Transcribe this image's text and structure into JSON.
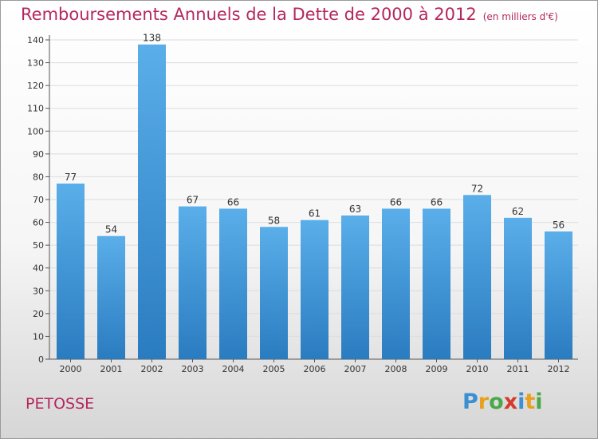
{
  "chart_data": {
    "type": "bar",
    "title": "Remboursements Annuels de la Dette de 2000 à 2012",
    "subtitle": "(en milliers d'€)",
    "categories": [
      "2000",
      "2001",
      "2002",
      "2003",
      "2004",
      "2005",
      "2006",
      "2007",
      "2008",
      "2009",
      "2010",
      "2011",
      "2012"
    ],
    "values": [
      77,
      54,
      138,
      67,
      66,
      58,
      61,
      63,
      66,
      66,
      72,
      62,
      56
    ],
    "ylim": [
      0,
      140
    ],
    "yticks": [
      0,
      10,
      20,
      30,
      40,
      50,
      60,
      70,
      80,
      90,
      100,
      110,
      120,
      130,
      140
    ],
    "xlabel": "",
    "ylabel": "",
    "grid": true,
    "bar_color_top": "#5aaee9",
    "bar_color_bottom": "#2a7cc0"
  },
  "commune": "PETOSSE",
  "logo": {
    "letters": [
      "P",
      "r",
      "o",
      "x",
      "i",
      "t",
      "i"
    ],
    "colors": [
      "#3c8fd0",
      "#e8a020",
      "#4aa84a",
      "#d53b2b",
      "#3c8fd0",
      "#e8a020",
      "#4aa84a"
    ]
  }
}
